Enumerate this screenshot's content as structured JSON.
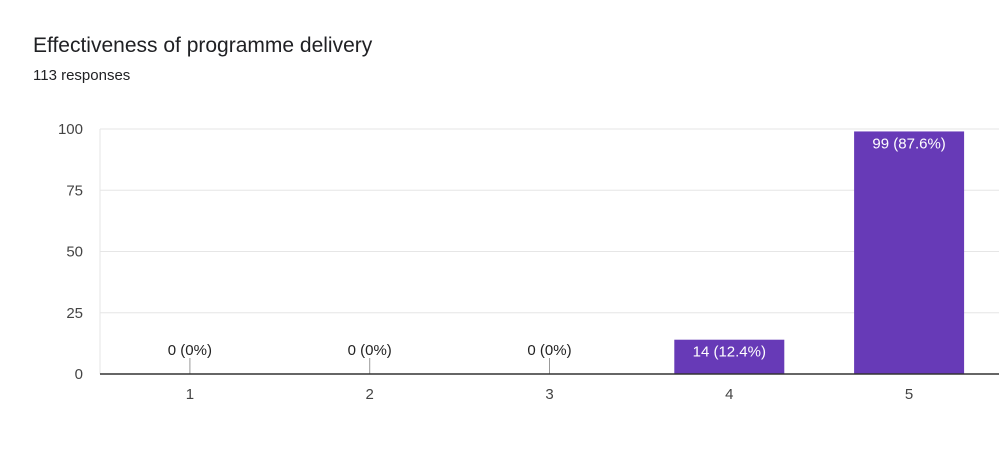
{
  "header": {
    "title": "Effectiveness of programme delivery",
    "subtitle": "113 responses"
  },
  "chart_data": {
    "type": "bar",
    "categories": [
      "1",
      "2",
      "3",
      "4",
      "5"
    ],
    "values": [
      0,
      0,
      0,
      14,
      99
    ],
    "data_labels": [
      "0 (0%)",
      "0 (0%)",
      "0 (0%)",
      "14 (12.4%)",
      "99 (87.6%)"
    ],
    "title": "Effectiveness of programme delivery",
    "subtitle": "113 responses",
    "xlabel": "",
    "ylabel": "",
    "ylim": [
      0,
      100
    ],
    "yticks": [
      0,
      25,
      50,
      75,
      100
    ],
    "grid": true,
    "legend": "none",
    "bar_color": "#673ab7",
    "label_inside_color": "#ffffff",
    "label_outside_color": "#222222"
  }
}
